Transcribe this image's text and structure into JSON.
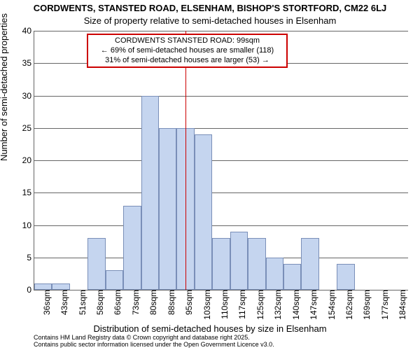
{
  "title_main": "CORDWENTS, STANSTED ROAD, ELSENHAM, BISHOP'S STORTFORD, CM22 6LJ",
  "title_sub": "Size of property relative to semi-detached houses in Elsenham",
  "ylabel": "Number of semi-detached properties",
  "xlabel": "Distribution of semi-detached houses by size in Elsenham",
  "footer1": "Contains HM Land Registry data © Crown copyright and database right 2025.",
  "footer2": "Contains public sector information licensed under the Open Government Licence v3.0.",
  "chart": {
    "type": "histogram",
    "ylim": [
      0,
      40
    ],
    "ytick_step": 5,
    "yticks": [
      0,
      5,
      10,
      15,
      20,
      25,
      30,
      35,
      40
    ],
    "x_categories": [
      "36sqm",
      "43sqm",
      "51sqm",
      "58sqm",
      "66sqm",
      "73sqm",
      "80sqm",
      "88sqm",
      "95sqm",
      "103sqm",
      "110sqm",
      "117sqm",
      "125sqm",
      "132sqm",
      "140sqm",
      "147sqm",
      "154sqm",
      "162sqm",
      "169sqm",
      "177sqm",
      "184sqm"
    ],
    "values": [
      1,
      1,
      0,
      8,
      3,
      13,
      30,
      25,
      25,
      24,
      8,
      9,
      8,
      5,
      4,
      8,
      0,
      4,
      0,
      0,
      0
    ],
    "bar_fill": "#c5d5ef",
    "bar_border": "#7a8fb8",
    "grid_color": "#666666",
    "background_color": "#ffffff",
    "vline_color": "#cc0000",
    "vline_x_index": 8.5,
    "annotation": {
      "line1": "CORDWENTS STANSTED ROAD: 99sqm",
      "line2": "← 69% of semi-detached houses are smaller (118)",
      "line3": "31% of semi-detached houses are larger (53) →",
      "border_color": "#cc0000"
    },
    "title_fontsize": 13,
    "label_fontsize": 13,
    "tick_fontsize": 12,
    "annotation_fontsize": 11
  }
}
